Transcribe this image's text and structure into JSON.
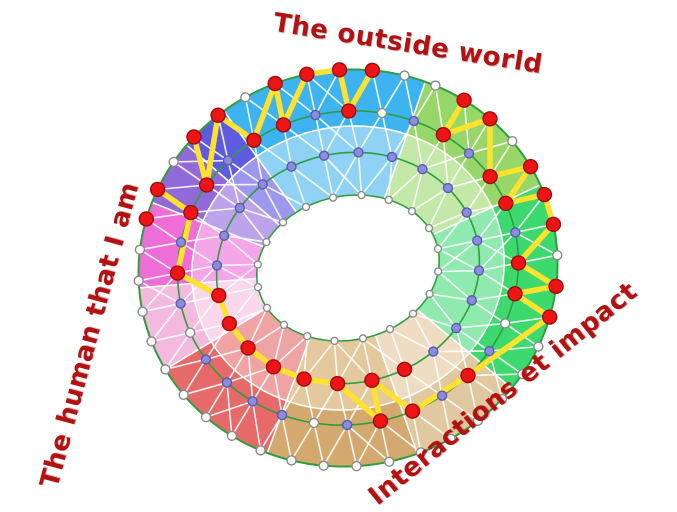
{
  "labels": [
    {
      "id": "outside-world",
      "text": "The outside world"
    },
    {
      "id": "human-that-i-am",
      "text": "The human that I am"
    },
    {
      "id": "interactions-impact",
      "text": "Interactions et impact"
    }
  ],
  "label_color": "#b31212",
  "diagram": {
    "background": "#ffffff",
    "sector_band_split": 0.55,
    "ring_line_color": "#2e9e3c",
    "mesh_color": "#ffffff",
    "yellow_path_color": "#ffe22e",
    "sectors": [
      {
        "name": "cyan",
        "start": -25,
        "end": 33,
        "outer": "#3eb3f1",
        "inner": "#8fd2f6"
      },
      {
        "name": "light-green",
        "start": 33,
        "end": 78,
        "outer": "#97d668",
        "inner": "#c4e8a8"
      },
      {
        "name": "green",
        "start": 78,
        "end": 140,
        "outer": "#3ed96e",
        "inner": "#90e9ae"
      },
      {
        "name": "light-tan",
        "start": 140,
        "end": 172,
        "outer": "#e0c8a0",
        "inner": "#eeddc2"
      },
      {
        "name": "tan",
        "start": 172,
        "end": 214,
        "outer": "#d4a96f",
        "inner": "#e4c89e"
      },
      {
        "name": "salmon",
        "start": 214,
        "end": 252,
        "outer": "#e66a6a",
        "inner": "#f0a3a3"
      },
      {
        "name": "pink",
        "start": 252,
        "end": 277,
        "outer": "#f4bade",
        "inner": "#f9d8ec"
      },
      {
        "name": "magenta",
        "start": 277,
        "end": 302,
        "outer": "#ee6ed8",
        "inner": "#f5a6e8"
      },
      {
        "name": "purple",
        "start": 302,
        "end": 321,
        "outer": "#8f6ad8",
        "inner": "#bda4ea"
      },
      {
        "name": "indigo",
        "start": 321,
        "end": 335,
        "outer": "#5f5be0",
        "inner": "#9d97ee"
      }
    ],
    "node_styles": {
      "w": {
        "fill": "#ffffff",
        "stroke": "#8a8a8a",
        "r": 4.5
      },
      "b": {
        "fill": "#8c8cdc",
        "stroke": "#5a5ab0",
        "r": 4.5
      },
      "r": {
        "fill": "#ec1414",
        "stroke": "#9e0d0d",
        "r": 7
      }
    },
    "rings": [
      {
        "t": 0,
        "count": 20,
        "r": 3.5,
        "nodes": "wwwwwwwwwwwwwwwwwwww"
      },
      {
        "t": 0.34,
        "count": 24,
        "nodes": "bbbbbbbbbbbrrrrrrrrbbbbb"
      },
      {
        "t": 0.67,
        "count": 32,
        "nodes": "brwbrbrrbrrwbrbrrbwbbbbwbrbrrbrr"
      },
      {
        "t": 1,
        "count": 40,
        "nodes": "rrrwwrrwrrrwrrwwwwwwwwwwwwwwwwwwwrrwrrwr"
      }
    ],
    "yellow_paths": [
      [
        [
          3,
          36
        ],
        [
          2,
          28
        ],
        [
          3,
          37
        ],
        [
          2,
          30
        ],
        [
          3,
          39
        ],
        [
          2,
          31
        ],
        [
          3,
          0
        ],
        [
          3,
          1
        ],
        [
          2,
          1
        ],
        [
          3,
          2
        ]
      ],
      [
        [
          3,
          5
        ],
        [
          2,
          4
        ],
        [
          3,
          6
        ],
        [
          2,
          6
        ],
        [
          3,
          8
        ],
        [
          2,
          7
        ],
        [
          3,
          9
        ],
        [
          3,
          10
        ],
        [
          2,
          9
        ],
        [
          3,
          12
        ],
        [
          2,
          10
        ],
        [
          3,
          13
        ],
        [
          2,
          13
        ]
      ],
      [
        [
          3,
          34
        ],
        [
          2,
          27
        ],
        [
          2,
          25
        ],
        [
          1,
          18
        ],
        [
          1,
          17
        ],
        [
          1,
          16
        ],
        [
          1,
          15
        ],
        [
          1,
          14
        ],
        [
          1,
          13
        ],
        [
          2,
          16
        ],
        [
          1,
          12
        ],
        [
          2,
          15
        ],
        [
          2,
          13
        ]
      ]
    ]
  }
}
